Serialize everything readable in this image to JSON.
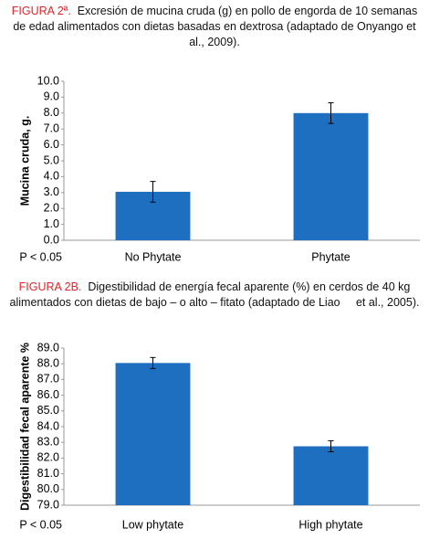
{
  "chart_data": [
    {
      "type": "bar",
      "figure_label": "FIGURA 2ª.",
      "title": "Excresión de mucina cruda (g) en pollo de engorda de 10 semanas de edad alimentados con dietas basadas en dextrosa (adaptado de Onyango et al., 2009).",
      "y_label": "Mucina cruda, g.",
      "annotation": "P < 0.05",
      "categories": [
        "No Phytate",
        "Phytate"
      ],
      "values": [
        3.05,
        8.0
      ],
      "errors": [
        0.65,
        0.65
      ],
      "color": "#1f6fc0",
      "ylim": [
        0,
        10
      ],
      "yticks": [
        {
          "value": 0,
          "label": "0.0"
        },
        {
          "value": 1,
          "label": "1.0"
        },
        {
          "value": 2,
          "label": "2.0"
        },
        {
          "value": 3,
          "label": "3.0"
        },
        {
          "value": 4,
          "label": "4.0"
        },
        {
          "value": 5,
          "label": "5.0"
        },
        {
          "value": 6,
          "label": "6.0"
        },
        {
          "value": 7,
          "label": "7.0"
        },
        {
          "value": 8,
          "label": "8.0"
        },
        {
          "value": 9,
          "label": "9.0"
        },
        {
          "value": 10,
          "label": "10.0"
        }
      ],
      "grid": false
    },
    {
      "type": "bar",
      "figure_label": "FIGURA 2B.",
      "title": "Digestibilidad de energía fecal aparente (%) en cerdos de 40 kg alimentados con dietas de bajo – o alto – fitato (adaptado de Liao     et al., 2005).",
      "y_label": "Digestibilidad fecal aparente %",
      "annotation": "P < 0.05",
      "categories": [
        "Low phytate",
        "High phytate"
      ],
      "values": [
        88.05,
        82.75
      ],
      "errors": [
        0.35,
        0.35
      ],
      "color": "#1f6fc0",
      "ylim": [
        79,
        89
      ],
      "yticks": [
        {
          "value": 79,
          "label": "79.0"
        },
        {
          "value": 80,
          "label": "80.0"
        },
        {
          "value": 81,
          "label": "81.0"
        },
        {
          "value": 82,
          "label": "82.0"
        },
        {
          "value": 83,
          "label": "83.0"
        },
        {
          "value": 84,
          "label": "84.0"
        },
        {
          "value": 85,
          "label": "85.0"
        },
        {
          "value": 86,
          "label": "86.0"
        },
        {
          "value": 87,
          "label": "87.0"
        },
        {
          "value": 88,
          "label": "88.0"
        },
        {
          "value": 89,
          "label": "89.0"
        }
      ],
      "grid": false
    }
  ]
}
